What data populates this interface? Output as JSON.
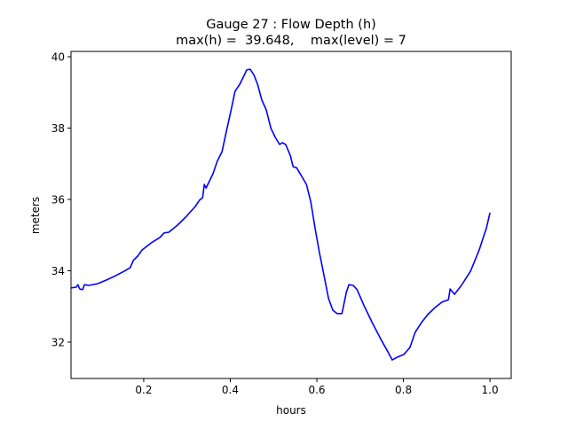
{
  "chart_data": {
    "type": "line",
    "title": "Gauge 27 : Flow Depth (h)",
    "subtitle": "max(h) =  39.648,    max(level) = 7",
    "xlabel": "hours",
    "ylabel": "meters",
    "xlim": [
      0.032,
      1.049
    ],
    "ylim": [
      30.98,
      40.15
    ],
    "xticks": [
      0.2,
      0.4,
      0.6,
      0.8,
      1.0
    ],
    "xtick_labels": [
      "0.2",
      "0.4",
      "0.6",
      "0.8",
      "1.0"
    ],
    "yticks": [
      32,
      34,
      36,
      38,
      40
    ],
    "ytick_labels": [
      "32",
      "34",
      "36",
      "38",
      "40"
    ],
    "grid": false,
    "series": [
      {
        "name": "h",
        "color": "#0000ff",
        "x": [
          0.032,
          0.044,
          0.048,
          0.052,
          0.059,
          0.063,
          0.073,
          0.094,
          0.114,
          0.135,
          0.155,
          0.169,
          0.176,
          0.186,
          0.196,
          0.217,
          0.237,
          0.247,
          0.258,
          0.278,
          0.299,
          0.319,
          0.329,
          0.336,
          0.34,
          0.344,
          0.35,
          0.36,
          0.37,
          0.381,
          0.391,
          0.401,
          0.411,
          0.422,
          0.432,
          0.438,
          0.446,
          0.455,
          0.463,
          0.473,
          0.483,
          0.494,
          0.504,
          0.514,
          0.52,
          0.528,
          0.539,
          0.545,
          0.553,
          0.565,
          0.576,
          0.586,
          0.596,
          0.606,
          0.617,
          0.627,
          0.637,
          0.647,
          0.658,
          0.668,
          0.674,
          0.684,
          0.693,
          0.709,
          0.729,
          0.75,
          0.764,
          0.774,
          0.786,
          0.801,
          0.815,
          0.827,
          0.842,
          0.856,
          0.873,
          0.889,
          0.904,
          0.908,
          0.918,
          0.934,
          0.955,
          0.975,
          0.992,
          1.0
        ],
        "y": [
          33.52,
          33.54,
          33.61,
          33.49,
          33.47,
          33.61,
          33.59,
          33.64,
          33.74,
          33.86,
          33.99,
          34.09,
          34.29,
          34.41,
          34.58,
          34.78,
          34.93,
          35.06,
          35.08,
          35.28,
          35.53,
          35.8,
          35.98,
          36.05,
          36.42,
          36.32,
          36.47,
          36.72,
          37.07,
          37.34,
          37.91,
          38.46,
          39.03,
          39.23,
          39.48,
          39.63,
          39.65,
          39.48,
          39.23,
          38.78,
          38.51,
          37.99,
          37.74,
          37.54,
          37.59,
          37.54,
          37.22,
          36.92,
          36.89,
          36.65,
          36.42,
          35.93,
          35.18,
          34.51,
          33.84,
          33.22,
          32.89,
          32.8,
          32.8,
          33.39,
          33.61,
          33.59,
          33.47,
          33.02,
          32.52,
          32.03,
          31.73,
          31.5,
          31.58,
          31.65,
          31.85,
          32.27,
          32.55,
          32.77,
          32.97,
          33.12,
          33.19,
          33.49,
          33.34,
          33.59,
          33.99,
          34.58,
          35.21,
          35.63
        ]
      }
    ]
  }
}
